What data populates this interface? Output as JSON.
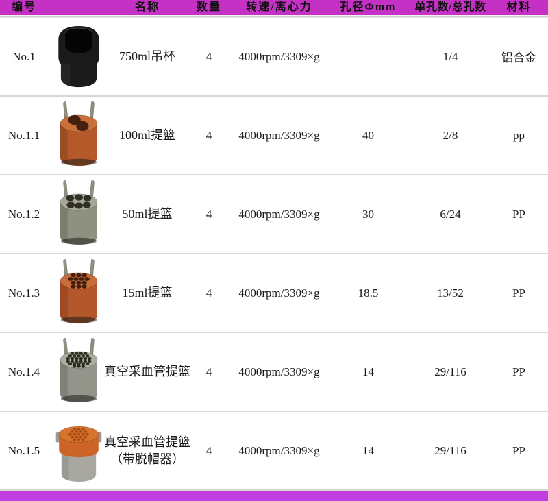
{
  "header": {
    "bg": "#c531c5",
    "labels": {
      "no": "编号",
      "name": "名称",
      "qty": "数量",
      "speed": "转速/离心力",
      "diameter": "孔径Φmm",
      "holes": "单孔数/总孔数",
      "material": "材料"
    }
  },
  "footer": {
    "bg": "#c23ddf"
  },
  "rows": [
    {
      "no": "No.1",
      "name": "750ml吊杯",
      "name_line2": "",
      "qty": "4",
      "speed": "4000rpm/3309×g",
      "diameter": "",
      "holes": "1/4",
      "material": "铝合金",
      "image": {
        "kind": "bucket",
        "body": "#1a1a1a",
        "opening": "#050505"
      }
    },
    {
      "no": "No.1.1",
      "name": "100ml提篮",
      "name_line2": "",
      "qty": "4",
      "speed": "4000rpm/3309×g",
      "diameter": "40",
      "holes": "2/8",
      "material": "pp",
      "image": {
        "kind": "basket",
        "holes": 2,
        "body": "#b5592a",
        "top": "#c96f3c",
        "hole": "#46200e",
        "handle": "#8d9180"
      }
    },
    {
      "no": "No.1.2",
      "name": "50ml提篮",
      "name_line2": "",
      "qty": "4",
      "speed": "4000rpm/3309×g",
      "diameter": "30",
      "holes": "6/24",
      "material": "PP",
      "image": {
        "kind": "basket",
        "holes": 6,
        "body": "#8e9080",
        "top": "#a6a795",
        "hole": "#2f2f26",
        "handle": "#8d9180"
      }
    },
    {
      "no": "No.1.3",
      "name": "15ml提篮",
      "name_line2": "",
      "qty": "4",
      "speed": "4000rpm/3309×g",
      "diameter": "18.5",
      "holes": "13/52",
      "material": "PP",
      "image": {
        "kind": "basket",
        "holes": 13,
        "body": "#b4572a",
        "top": "#c66d3a",
        "hole": "#441f0e",
        "handle": "#8d9180"
      }
    },
    {
      "no": "No.1.4",
      "name": "真空采血管提篮",
      "name_line2": "",
      "qty": "4",
      "speed": "4000rpm/3309×g",
      "diameter": "14",
      "holes": "29/116",
      "material": "PP",
      "image": {
        "kind": "basket",
        "holes": 29,
        "body": "#93958a",
        "top": "#abaf9d",
        "hole": "#2b2b22",
        "handle": "#8d9180"
      }
    },
    {
      "no": "No.1.5",
      "name": "真空采血管提篮",
      "name_line2": "（带脱帽器）",
      "qty": "4",
      "speed": "4000rpm/3309×g",
      "diameter": "14",
      "holes": "29/116",
      "material": "PP",
      "image": {
        "kind": "capped",
        "cap": "#cc6428",
        "capTop": "#d5732f",
        "dots": "#a8490f",
        "body": "#a8a8a1",
        "tab": "#9a9a93"
      }
    }
  ]
}
